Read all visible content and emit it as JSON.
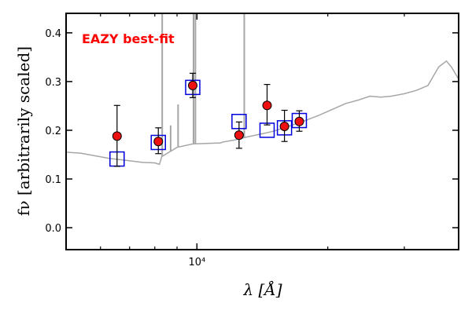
{
  "chart_data": {
    "type": "scatter",
    "title": "",
    "xlabel": "λ [Å]",
    "ylabel": "fν [arbitrarily scaled]",
    "xscale": "log",
    "xlim": [
      5000,
      40000
    ],
    "ylim": [
      -0.045,
      0.44
    ],
    "yticks": [
      0.0,
      0.1,
      0.2,
      0.3,
      0.4
    ],
    "ytick_labels": [
      "0.0",
      "0.1",
      "0.2",
      "0.3",
      "0.4"
    ],
    "xticks": [
      10000
    ],
    "xtick_labels": [
      "10⁴"
    ],
    "grid": false,
    "annotation": {
      "text": "EAZY best-fit",
      "color": "#ff0000"
    },
    "colors": {
      "sed": "#a6a6a6",
      "model_box": "#0000dd",
      "observed": "#ee1111",
      "errorbar": "#000000"
    },
    "sed_template": {
      "x": [
        5000,
        5400,
        5800,
        6300,
        6900,
        7500,
        8000,
        8200,
        8300,
        9000,
        9800,
        10500,
        11300,
        11500,
        12200,
        13000,
        14000,
        15000,
        16000,
        17500,
        19000,
        20500,
        22000,
        23500,
        25000,
        26500,
        28000,
        30000,
        32000,
        34000,
        36000,
        37500,
        38500,
        40000
      ],
      "y": [
        0.155,
        0.153,
        0.148,
        0.142,
        0.138,
        0.134,
        0.133,
        0.13,
        0.146,
        0.165,
        0.172,
        0.173,
        0.174,
        0.176,
        0.18,
        0.186,
        0.192,
        0.198,
        0.206,
        0.218,
        0.23,
        0.243,
        0.255,
        0.262,
        0.27,
        0.268,
        0.27,
        0.275,
        0.282,
        0.292,
        0.33,
        0.342,
        0.33,
        0.305
      ],
      "emission_lines": [
        {
          "x": 8320,
          "ytop": 0.44
        },
        {
          "x": 8700,
          "ytop": 0.21
        },
        {
          "x": 9050,
          "ytop": 0.253
        },
        {
          "x": 9820,
          "ytop": 0.44
        },
        {
          "x": 9920,
          "ytop": 0.44
        },
        {
          "x": 12850,
          "ytop": 0.44
        }
      ]
    },
    "series": [
      {
        "values": [
          {
            "x": 6550,
            "y": 0.141
          },
          {
            "x": 8150,
            "y": 0.175
          },
          {
            "x": 9780,
            "y": 0.288
          },
          {
            "x": 12500,
            "y": 0.218
          },
          {
            "x": 14500,
            "y": 0.2
          },
          {
            "x": 15900,
            "y": 0.205
          },
          {
            "x": 17200,
            "y": 0.22
          }
        ]
      },
      {
        "values": [
          {
            "x": 6550,
            "y": 0.188,
            "err_lo": 0.062,
            "err_hi": 0.063
          },
          {
            "x": 8150,
            "y": 0.177,
            "err_lo": 0.025,
            "err_hi": 0.028
          },
          {
            "x": 9780,
            "y": 0.292,
            "err_lo": 0.025,
            "err_hi": 0.025
          },
          {
            "x": 12500,
            "y": 0.19,
            "err_lo": 0.027,
            "err_hi": 0.027
          },
          {
            "x": 14500,
            "y": 0.251,
            "err_lo": 0.04,
            "err_hi": 0.043
          },
          {
            "x": 15900,
            "y": 0.208,
            "err_lo": 0.031,
            "err_hi": 0.033
          },
          {
            "x": 17200,
            "y": 0.218,
            "err_lo": 0.02,
            "err_hi": 0.022
          }
        ]
      }
    ]
  }
}
